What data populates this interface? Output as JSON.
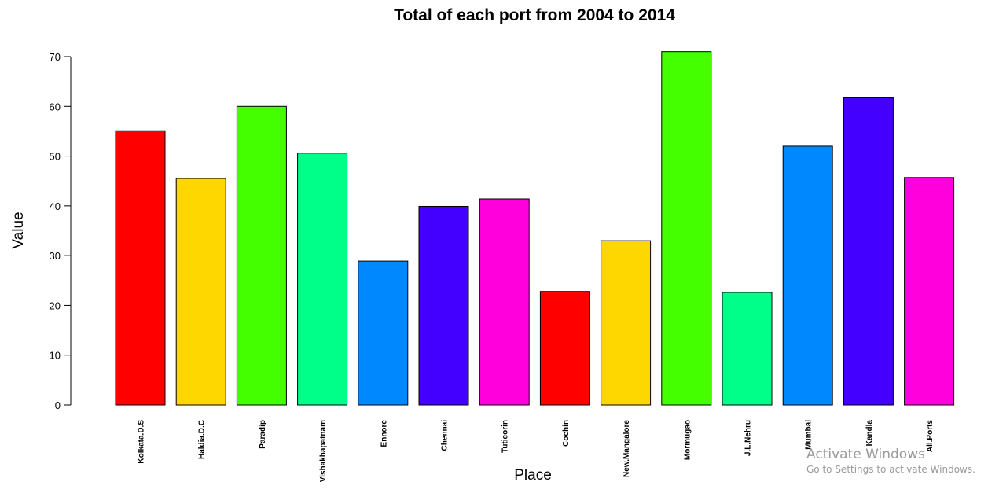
{
  "chart_data": {
    "type": "bar",
    "title": "Total of each port from 2004 to 2014",
    "xlabel": "Place",
    "ylabel": "Value",
    "ylim": [
      0,
      70
    ],
    "yticks": [
      0,
      10,
      20,
      30,
      40,
      50,
      60,
      70
    ],
    "grid": false,
    "categories": [
      "Kolkata.D.S",
      "Haldia.D.C",
      "Paradip",
      "Vishakhapatnam",
      "Ennore",
      "Chennai",
      "Tuticorin",
      "Cochin",
      "New.Mangalore",
      "Mormugao",
      "J.L.Nehru",
      "Mumbai",
      "Kandla",
      "All.Ports"
    ],
    "values": [
      55.1,
      45.5,
      60.0,
      50.6,
      28.9,
      39.9,
      41.4,
      22.8,
      33.0,
      71.0,
      22.6,
      52.0,
      61.7,
      45.7
    ],
    "colors": [
      "#ff0000",
      "#ffd700",
      "#44ff00",
      "#00ff88",
      "#0088ff",
      "#4400ff",
      "#ff00dd",
      "#ff0000",
      "#ffd700",
      "#44ff00",
      "#00ff88",
      "#0088ff",
      "#4400ff",
      "#ff00dd"
    ]
  },
  "watermark": {
    "title": "Activate Windows",
    "subtitle": "Go to Settings to activate Windows."
  }
}
